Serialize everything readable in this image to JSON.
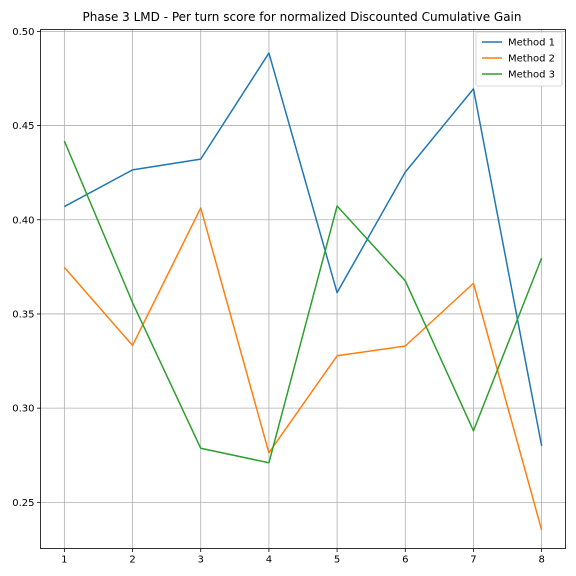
{
  "chart_data": {
    "type": "line",
    "title": "Phase 3 LMD - Per turn score for normalized Discounted Cumulative Gain",
    "xlabel": "",
    "ylabel": "",
    "x": [
      1,
      2,
      3,
      4,
      5,
      6,
      7,
      8
    ],
    "x_ticks": [
      "1",
      "2",
      "3",
      "4",
      "5",
      "6",
      "7",
      "8"
    ],
    "y_ticks": [
      "0.25",
      "0.30",
      "0.35",
      "0.40",
      "0.45",
      "0.50"
    ],
    "xlim": [
      0.65,
      8.35
    ],
    "ylim": [
      0.2255,
      0.501
    ],
    "grid": true,
    "legend_position": "top-right",
    "series": [
      {
        "name": "Method 1",
        "color": "#1f77b4",
        "values": [
          0.407,
          0.4265,
          0.4322,
          0.4885,
          0.3613,
          0.4253,
          0.4695,
          0.28
        ]
      },
      {
        "name": "Method 2",
        "color": "#ff7f0e",
        "values": [
          0.3747,
          0.3333,
          0.4063,
          0.2763,
          0.3278,
          0.333,
          0.3663,
          0.2353
        ]
      },
      {
        "name": "Method 3",
        "color": "#2ca02c",
        "values": [
          0.4418,
          0.356,
          0.2787,
          0.271,
          0.4073,
          0.3676,
          0.288,
          0.3797
        ]
      }
    ]
  }
}
